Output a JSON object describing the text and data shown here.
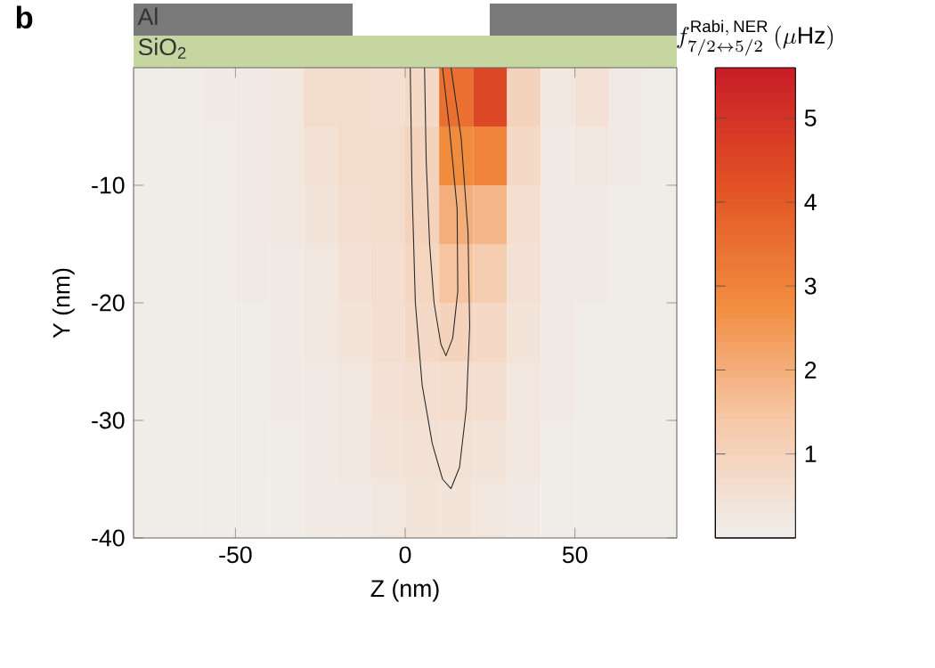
{
  "chart_data": {
    "type": "heatmap",
    "xlabel": "Z (nm)",
    "ylabel": "Y (nm)",
    "clabel": "f^{\\mathrm{Rabi,\\,NER}}_{7/2\\leftrightarrow 5/2}\\,(\\mu\\mathrm{Hz})",
    "annotations": [
      "b",
      "Al",
      "SiO$_{2}$"
    ],
    "xlim": [
      -80,
      80
    ],
    "ylim": [
      -40,
      0
    ],
    "xticks": [
      -50,
      0,
      50
    ],
    "yticks": [
      -40,
      -30,
      -20,
      -10
    ],
    "clim": [
      0,
      5.6
    ],
    "cticks": [
      1,
      2,
      3,
      4,
      5
    ],
    "x": [
      -75,
      -65,
      -55,
      -45,
      -35,
      -25,
      -15,
      -5,
      5,
      15,
      25,
      35,
      45,
      55,
      65,
      75
    ],
    "y": [
      -2.5,
      -7.5,
      -12.5,
      -17.5,
      -22.5,
      -27.5,
      -32.5,
      -37.5
    ],
    "cells": [
      [
        0.1,
        0.1,
        0.15,
        0.2,
        0.3,
        0.7,
        0.7,
        0.6,
        0.8,
        3.5,
        4.5,
        1.0,
        0.3,
        0.5,
        0.2,
        0.1
      ],
      [
        0.1,
        0.1,
        0.1,
        0.2,
        0.3,
        0.5,
        0.7,
        0.7,
        1.0,
        2.8,
        3.0,
        0.8,
        0.2,
        0.3,
        0.2,
        0.1
      ],
      [
        0.1,
        0.1,
        0.1,
        0.2,
        0.3,
        0.4,
        0.6,
        0.7,
        1.0,
        2.0,
        1.8,
        0.6,
        0.2,
        0.2,
        0.1,
        0.1
      ],
      [
        0.1,
        0.1,
        0.1,
        0.2,
        0.2,
        0.3,
        0.5,
        0.6,
        0.9,
        1.5,
        1.2,
        0.5,
        0.2,
        0.2,
        0.1,
        0.1
      ],
      [
        0.1,
        0.1,
        0.1,
        0.1,
        0.2,
        0.3,
        0.4,
        0.6,
        0.8,
        1.0,
        0.8,
        0.4,
        0.2,
        0.1,
        0.1,
        0.1
      ],
      [
        0.1,
        0.1,
        0.1,
        0.1,
        0.2,
        0.2,
        0.3,
        0.5,
        0.6,
        0.7,
        0.6,
        0.3,
        0.2,
        0.1,
        0.1,
        0.1
      ],
      [
        0.1,
        0.1,
        0.1,
        0.1,
        0.1,
        0.2,
        0.3,
        0.4,
        0.5,
        0.5,
        0.4,
        0.3,
        0.1,
        0.1,
        0.1,
        0.1
      ],
      [
        0.1,
        0.1,
        0.1,
        0.1,
        0.1,
        0.2,
        0.2,
        0.3,
        0.4,
        0.4,
        0.3,
        0.2,
        0.1,
        0.1,
        0.1,
        0.1
      ]
    ],
    "series": [
      {
        "type": "line",
        "color": "#262626",
        "x": [
          1.5,
          2,
          3,
          5,
          8,
          11,
          13.5,
          16,
          18,
          19,
          18.5,
          16.5,
          13.5
        ],
        "values": [
          0,
          -10,
          -20,
          -27,
          -32,
          -35,
          -35.8,
          -34,
          -29,
          -22,
          -14,
          -6,
          0
        ]
      },
      {
        "type": "line",
        "color": "#262626",
        "x": [
          5.7,
          6.2,
          7.2,
          8.5,
          10.5,
          12,
          14,
          15.5,
          15.3,
          13,
          11
        ],
        "values": [
          0,
          -8,
          -15,
          -20,
          -23.5,
          -24.5,
          -23,
          -19,
          -12,
          -5,
          0
        ]
      }
    ]
  }
}
